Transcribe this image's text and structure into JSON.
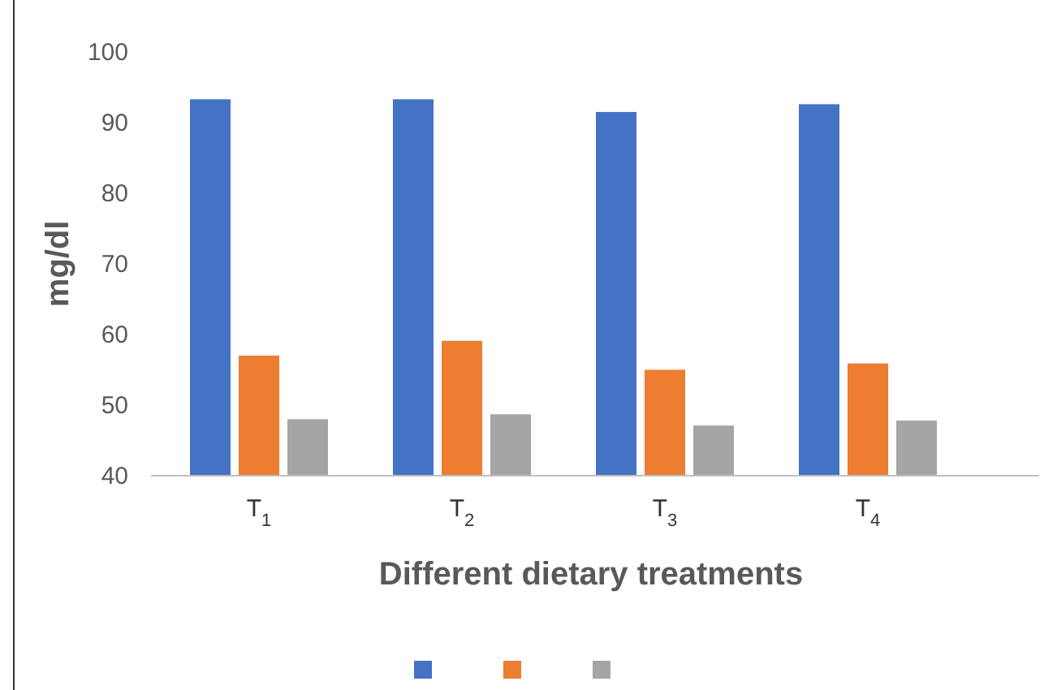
{
  "chart_data": {
    "type": "bar",
    "xlabel": "Different dietary treatments",
    "ylabel": "mg/dl",
    "categories": [
      "T$_{1}$",
      "T$_{2}$",
      "T$_{3}$",
      "T$_{4}$"
    ],
    "series": [
      {
        "color": "#4472c4",
        "values": [
          93.3,
          93.3,
          91.5,
          92.6
        ]
      },
      {
        "color": "#ed7d31",
        "values": [
          57,
          59.1,
          55,
          55.9
        ]
      },
      {
        "color": "#a5a5a5",
        "values": [
          48,
          48.7,
          47.1,
          47.8
        ]
      }
    ],
    "ylim": [
      40,
      100
    ],
    "yticks": [
      40,
      50,
      60,
      70,
      80,
      90,
      100
    ],
    "grid": false
  }
}
